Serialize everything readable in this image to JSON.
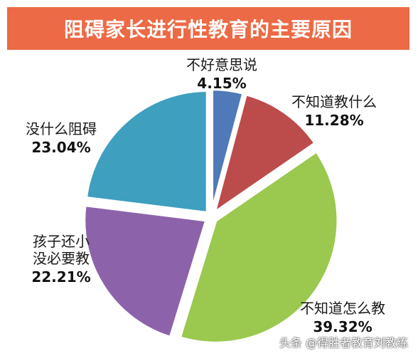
{
  "chart_data": {
    "type": "pie",
    "title": "阻碍家长进行性教育的主要原因",
    "slices": [
      {
        "label": "不好意思说",
        "value": 4.15,
        "value_label": "4.15%",
        "color": "#4f79b8"
      },
      {
        "label": "不知道教什么",
        "value": 11.28,
        "value_label": "11.28%",
        "color": "#bc4b4b"
      },
      {
        "label": "不知道怎么教",
        "value": 39.32,
        "value_label": "39.32%",
        "color": "#9bc84f"
      },
      {
        "label": "孩子还小没必要教",
        "value": 22.21,
        "value_label": "22.21%",
        "color": "#8c63aa"
      },
      {
        "label": "没什么阻碍",
        "value": 23.04,
        "value_label": "23.04%",
        "color": "#3e9fbf"
      }
    ]
  },
  "watermark": "头条 @得胜者教育刘教练"
}
